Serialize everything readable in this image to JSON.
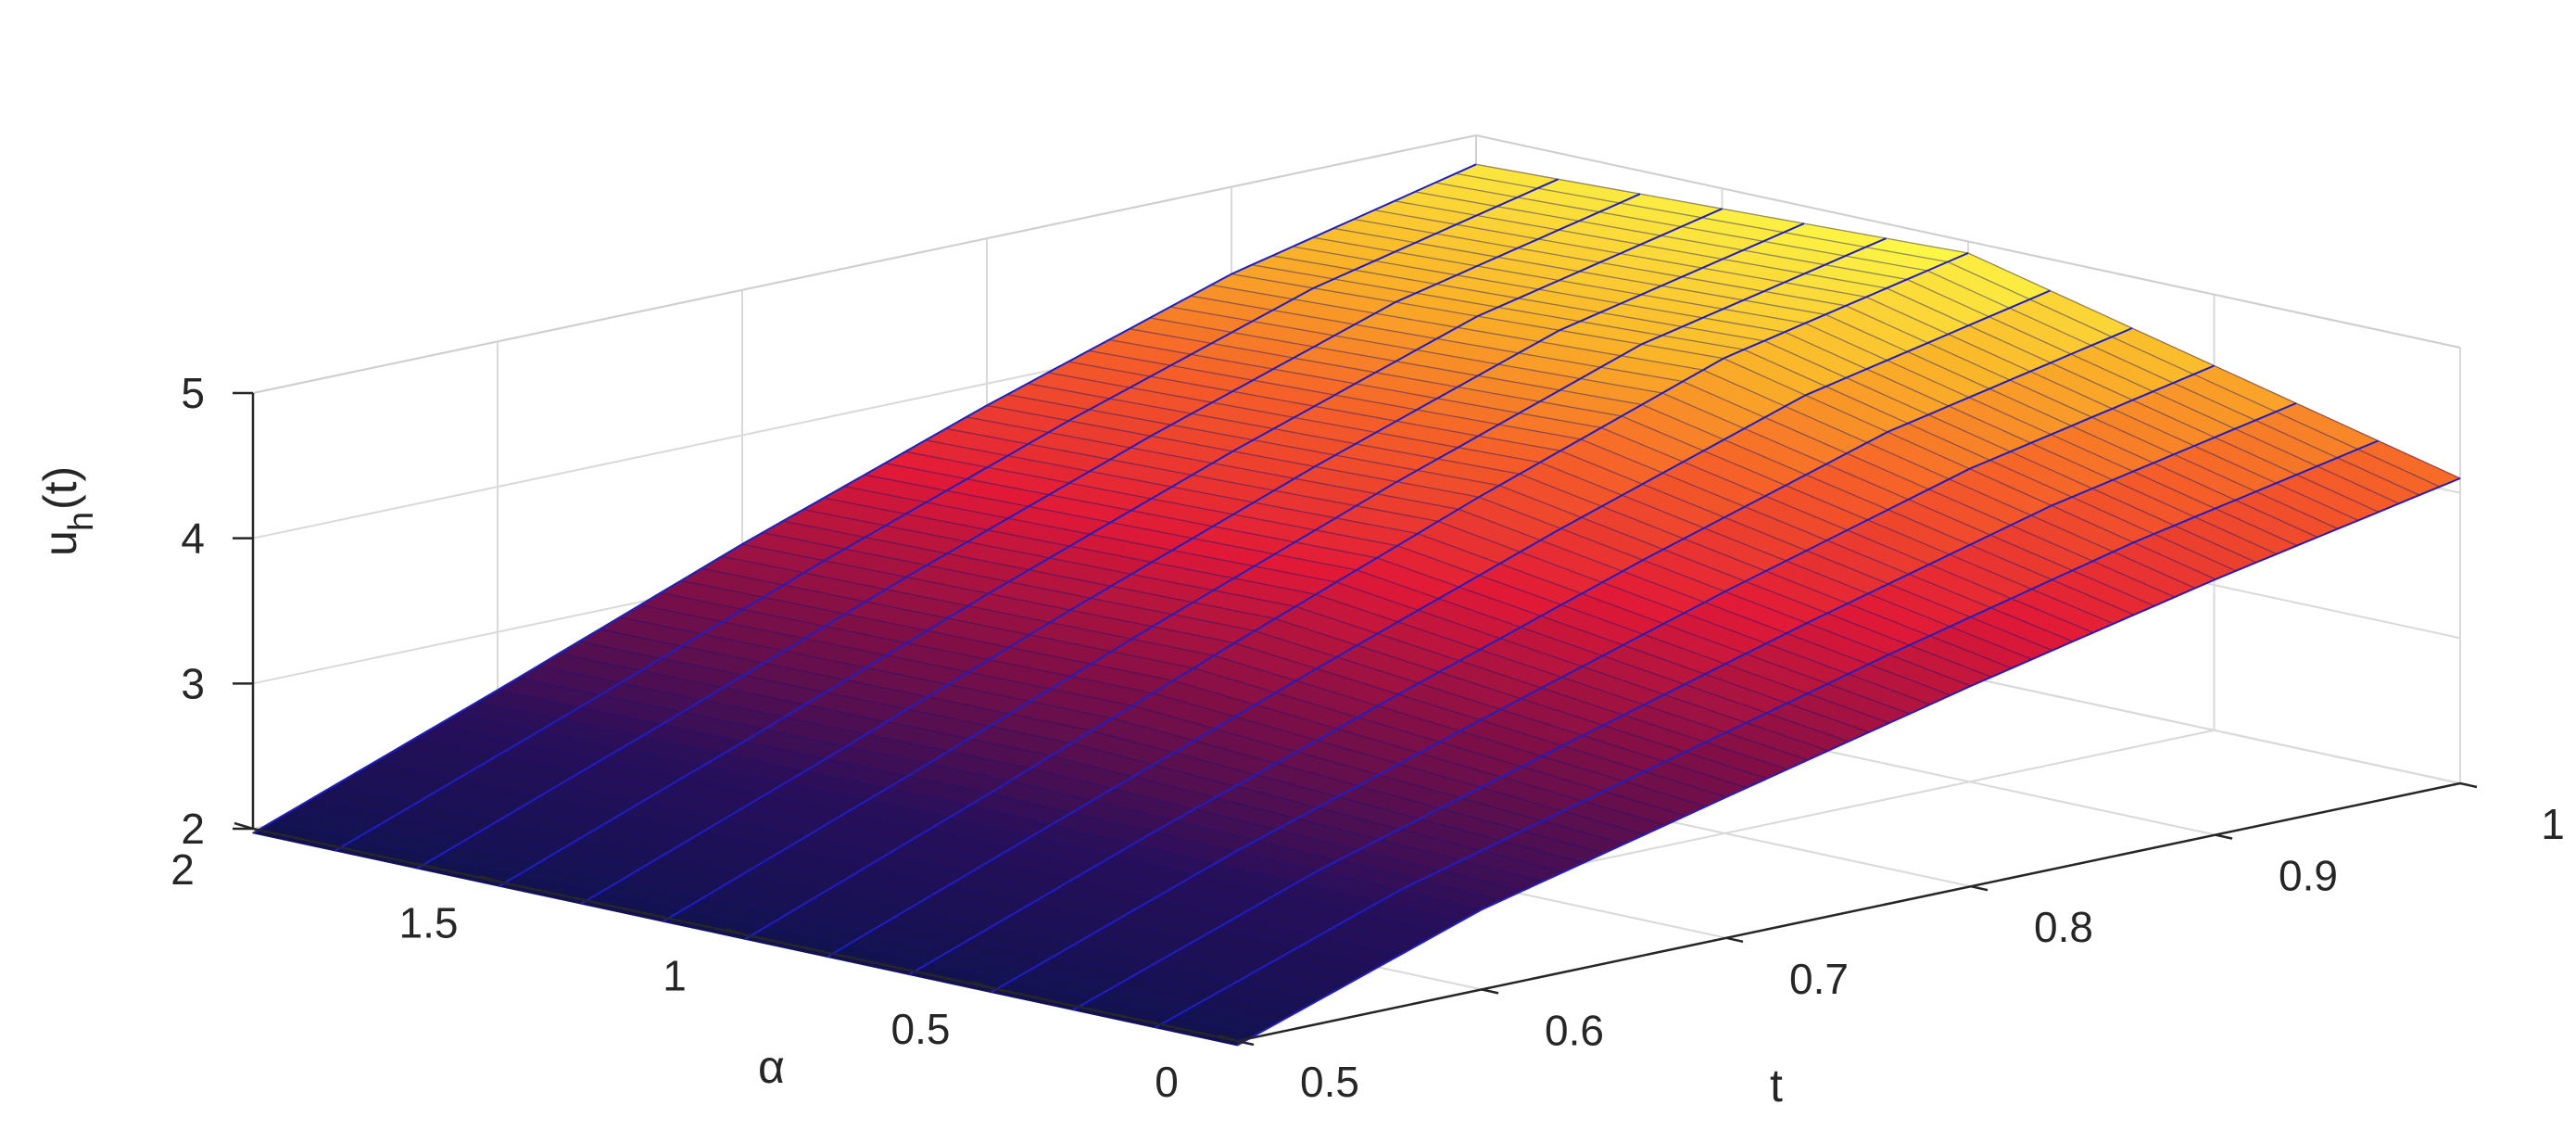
{
  "chart_data": {
    "type": "surface",
    "title": "",
    "xlabel": "t",
    "ylabel": "α",
    "zlabel_main": "u",
    "zlabel_sub": "h",
    "zlabel_tail": "(t)",
    "xlim": [
      0.5,
      1
    ],
    "ylim": [
      0,
      2
    ],
    "zlim": [
      2,
      5
    ],
    "xticks": [
      "0.5",
      "0.6",
      "0.7",
      "0.8",
      "0.9",
      "1"
    ],
    "yticks": [
      "0",
      "0.5",
      "1",
      "1.5",
      "2"
    ],
    "zticks": [
      "2",
      "3",
      "4",
      "5"
    ],
    "grid": true,
    "colormap": "hot-to-blue",
    "surface_samples": {
      "t": [
        0.5,
        0.6,
        0.7,
        0.8,
        0.9,
        1.0
      ],
      "alpha": [
        0,
        1,
        2
      ],
      "u": [
        [
          1.97,
          2.55,
          2.97,
          3.38,
          3.76,
          4.1
        ],
        [
          1.97,
          2.62,
          3.3,
          3.95,
          4.55,
          4.92
        ],
        [
          1.97,
          2.6,
          3.25,
          3.85,
          4.4,
          4.8
        ]
      ]
    },
    "edge_color": "#1e1ec8"
  }
}
